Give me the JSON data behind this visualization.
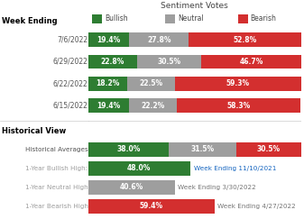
{
  "title": "Sentiment Votes",
  "legend": [
    "Bullish",
    "Neutral",
    "Bearish"
  ],
  "colors": {
    "bullish": "#2e7d32",
    "neutral": "#9e9e9e",
    "bearish": "#d32f2f"
  },
  "section1_label": "Week Ending",
  "section1_rows": [
    {
      "label": "7/6/2022",
      "bullish": 19.4,
      "neutral": 27.8,
      "bearish": 52.8
    },
    {
      "label": "6/29/2022",
      "bullish": 22.8,
      "neutral": 30.5,
      "bearish": 46.7
    },
    {
      "label": "6/22/2022",
      "bullish": 18.2,
      "neutral": 22.5,
      "bearish": 59.3
    },
    {
      "label": "6/15/2022",
      "bullish": 19.4,
      "neutral": 22.2,
      "bearish": 58.3
    }
  ],
  "section2_label": "Historical View",
  "section2_rows": [
    {
      "label": "Historical Averages",
      "bullish": 38.0,
      "neutral": 31.5,
      "bearish": 30.5,
      "type": "full",
      "note": ""
    },
    {
      "label": "1-Year Bullish High:",
      "bullish": 48.0,
      "neutral": 0,
      "bearish": 0,
      "type": "bullish_only",
      "note": "Week Ending 11/10/2021"
    },
    {
      "label": "1-Year Neutral High",
      "bullish": 0,
      "neutral": 40.6,
      "bearish": 0,
      "type": "neutral_only",
      "note": "Week Ending 3/30/2022"
    },
    {
      "label": "1-Year Bearish High",
      "bullish": 0,
      "neutral": 0,
      "bearish": 59.4,
      "type": "bearish_only",
      "note": "Week Ending 4/27/2022"
    }
  ],
  "background_color": "#ffffff",
  "text_color_blue": "#1565c0",
  "text_color_gray": "#757575",
  "note_color_bullish": "#1565c0",
  "note_color_neutral": "#757575",
  "note_color_bearish": "#757575",
  "label_color_hist": "#9e9e9e",
  "bar_xlim": 100
}
